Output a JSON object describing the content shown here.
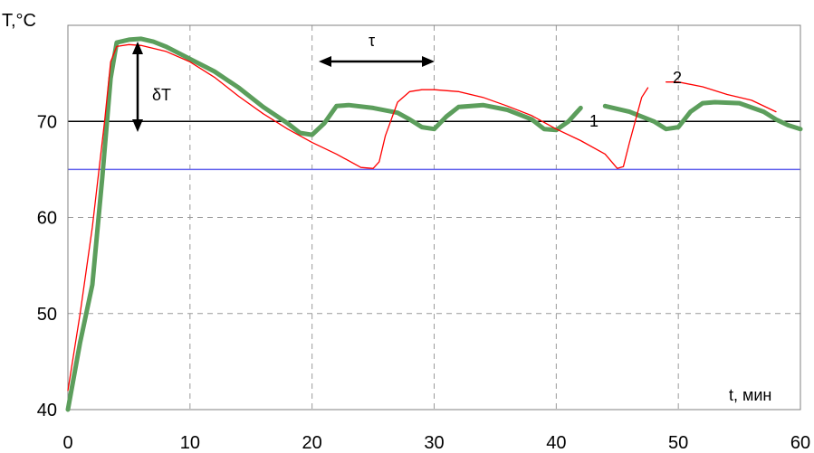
{
  "chart_data": {
    "type": "line",
    "xlabel": "t, мин",
    "ylabel": "T,°C",
    "xlim": [
      0,
      60
    ],
    "ylim": [
      40,
      80
    ],
    "xticks": [
      "0",
      "10",
      "20",
      "30",
      "40",
      "50",
      "60"
    ],
    "yticks": [
      "40",
      "50",
      "60",
      "70"
    ],
    "grid": true,
    "reference_lines": [
      {
        "y": 70,
        "color": "#000000"
      },
      {
        "y": 65,
        "color": "#6666ee"
      }
    ],
    "annotations": {
      "delta_label": "δT",
      "tau_label": "τ",
      "curve1_label": "1",
      "curve2_label": "2"
    },
    "series": [
      {
        "name": "1",
        "color": "#5c9e5c",
        "x": [
          0,
          1,
          2,
          2.8,
          3.5,
          4,
          5,
          6,
          7,
          8,
          10,
          12,
          14,
          16,
          18,
          19,
          20,
          21,
          22,
          23,
          25,
          27,
          28,
          29,
          30,
          31,
          32,
          34,
          36,
          38,
          39,
          40,
          41,
          42,
          null,
          44,
          46,
          48,
          49,
          50,
          51,
          52,
          53,
          55,
          57,
          58,
          59,
          60
        ],
        "y": [
          40,
          47,
          53,
          64,
          74.5,
          78.2,
          78.5,
          78.6,
          78.3,
          77.8,
          76.5,
          75.2,
          73.5,
          71.5,
          69.8,
          68.8,
          68.6,
          69.8,
          71.6,
          71.7,
          71.4,
          70.9,
          70.2,
          69.4,
          69.2,
          70.5,
          71.5,
          71.7,
          71.2,
          70.2,
          69.2,
          69.1,
          70.0,
          71.4,
          null,
          71.6,
          71.0,
          70.0,
          69.2,
          69.4,
          71.0,
          71.9,
          72.0,
          71.9,
          71.0,
          70.2,
          69.6,
          69.2
        ]
      },
      {
        "name": "2",
        "color": "#ff0000",
        "x": [
          0,
          1,
          2,
          3,
          3.5,
          4,
          5,
          6,
          8,
          10,
          12,
          14,
          16,
          18,
          20,
          22,
          24,
          25,
          25.5,
          26,
          27,
          28,
          29,
          30,
          32,
          34,
          36,
          38,
          40,
          42,
          44,
          45,
          45.5,
          46,
          47,
          47.5,
          null,
          49,
          50,
          52,
          54,
          56,
          58
        ],
        "y": [
          42,
          50,
          59,
          70,
          76.2,
          77.8,
          78.0,
          77.9,
          77.3,
          76.2,
          74.6,
          72.6,
          70.8,
          69.2,
          67.8,
          66.6,
          65.2,
          65.1,
          65.8,
          68.5,
          72.0,
          73.1,
          73.3,
          73.3,
          73.1,
          72.5,
          71.6,
          70.6,
          69.2,
          68.0,
          66.6,
          65.1,
          65.3,
          67.8,
          72.5,
          73.5,
          null,
          74.1,
          74.1,
          73.6,
          72.8,
          72.2,
          71.0
        ]
      }
    ]
  }
}
